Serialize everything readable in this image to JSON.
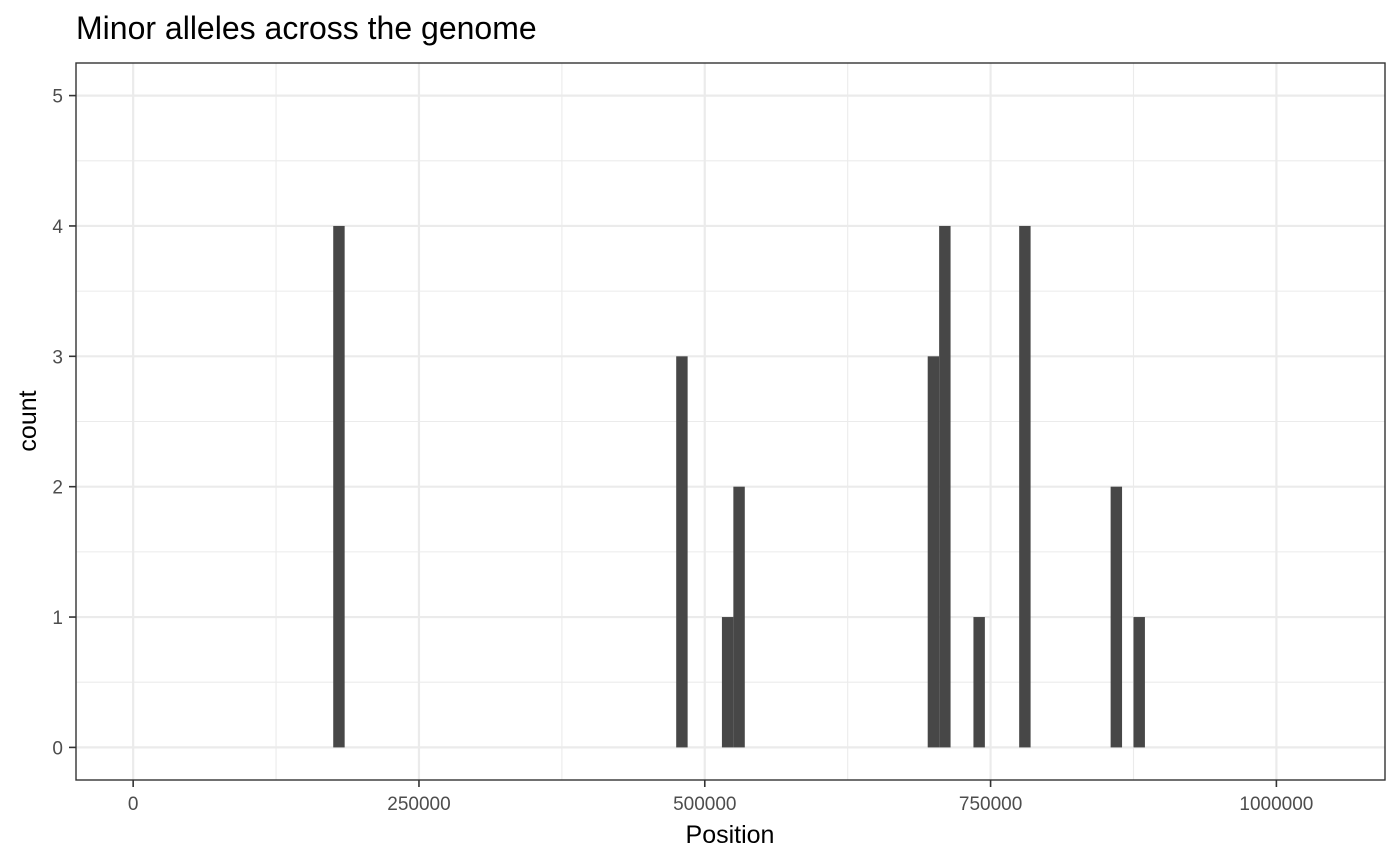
{
  "chart_data": {
    "type": "bar",
    "title": "Minor alleles across the genome",
    "xlabel": "Position",
    "ylabel": "count",
    "xlim": [
      -50000,
      1095000
    ],
    "ylim": [
      -0.25,
      5.25
    ],
    "x_major_ticks": [
      0,
      250000,
      500000,
      750000,
      1000000
    ],
    "x_tick_labels": [
      "0",
      "250000",
      "500000",
      "750000",
      "1000000"
    ],
    "x_minor_ticks": [
      125000,
      375000,
      625000,
      875000
    ],
    "y_major_ticks": [
      0,
      1,
      2,
      3,
      4,
      5
    ],
    "y_tick_labels": [
      "0",
      "1",
      "2",
      "3",
      "4",
      "5"
    ],
    "y_minor_ticks": [
      0.5,
      1.5,
      2.5,
      3.5,
      4.5
    ],
    "bar_color": "#474747",
    "bin_start": -5000,
    "bin_width": 10000,
    "bins_x0": [
      175000,
      475000,
      515000,
      525000,
      695000,
      705000,
      735000,
      775000,
      855000,
      875000
    ],
    "values": [
      4,
      3,
      1,
      2,
      3,
      4,
      1,
      4,
      2,
      1
    ],
    "grid": true,
    "theme": "bw"
  }
}
